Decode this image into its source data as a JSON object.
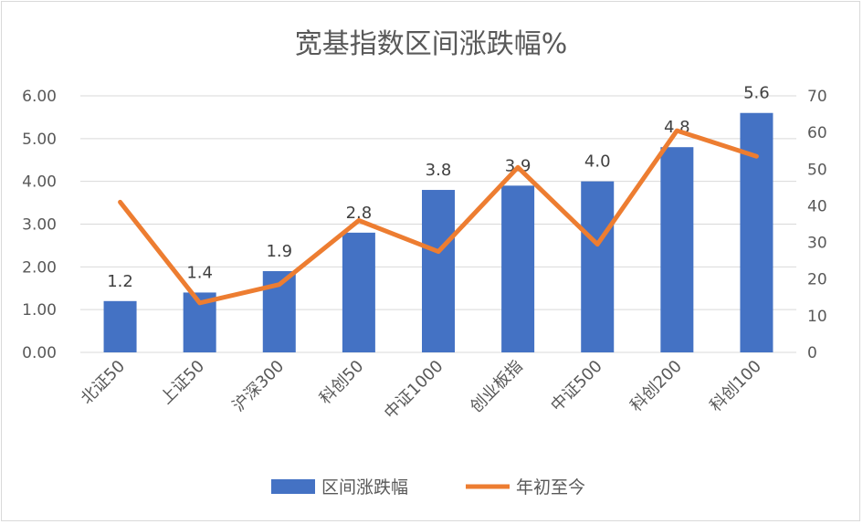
{
  "chart_data": {
    "type": "bar+line",
    "title": "宽基指数区间涨跌幅%",
    "categories": [
      "北证50",
      "上证50",
      "沪深300",
      "科创50",
      "中证1000",
      "创业板指",
      "中证500",
      "科创200",
      "科创100"
    ],
    "series": [
      {
        "name": "区间涨跌幅",
        "type": "bar",
        "axis": "left",
        "color": "#4472C4",
        "values": [
          1.2,
          1.4,
          1.9,
          2.8,
          3.8,
          3.9,
          4.0,
          4.8,
          5.6
        ],
        "labels": [
          "1.2",
          "1.4",
          "1.9",
          "2.8",
          "3.8",
          "3.9",
          "4.0",
          "4.8",
          "5.6"
        ]
      },
      {
        "name": "年初至今",
        "type": "line",
        "axis": "right",
        "color": "#ED7D31",
        "values": [
          41,
          13.5,
          18.5,
          36,
          27.5,
          50.5,
          29.5,
          60.5,
          53.5
        ]
      }
    ],
    "y_left": {
      "min": 0,
      "max": 6,
      "step": 1,
      "ticks": [
        "0.00",
        "1.00",
        "2.00",
        "3.00",
        "4.00",
        "5.00",
        "6.00"
      ]
    },
    "y_right": {
      "min": 0,
      "max": 70,
      "step": 10,
      "ticks": [
        "0",
        "10",
        "20",
        "30",
        "40",
        "50",
        "60",
        "70"
      ]
    },
    "grid": true,
    "legend": "bottom"
  }
}
